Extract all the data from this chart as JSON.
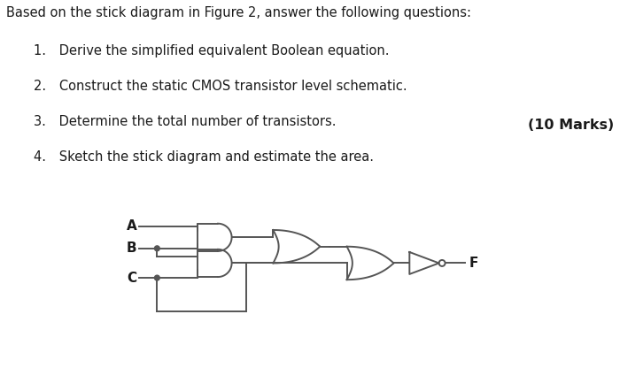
{
  "title_text": "Based on the stick diagram in Figure 2, answer the following questions:",
  "questions": [
    "Derive the simplified equivalent Boolean equation.",
    "Construct the static CMOS transistor level schematic.",
    "Determine the total number of transistors.",
    "Sketch the stick diagram and estimate the area."
  ],
  "marks_text": "(10 Marks)",
  "bg_color": "#ffffff",
  "text_color": "#1a1a1a",
  "gate_color": "#555555",
  "label_A": "A",
  "label_B": "B",
  "label_C": "C",
  "label_F": "F",
  "title_fontsize": 10.5,
  "q_fontsize": 10.5,
  "marks_fontsize": 11.5,
  "label_fontsize": 11
}
